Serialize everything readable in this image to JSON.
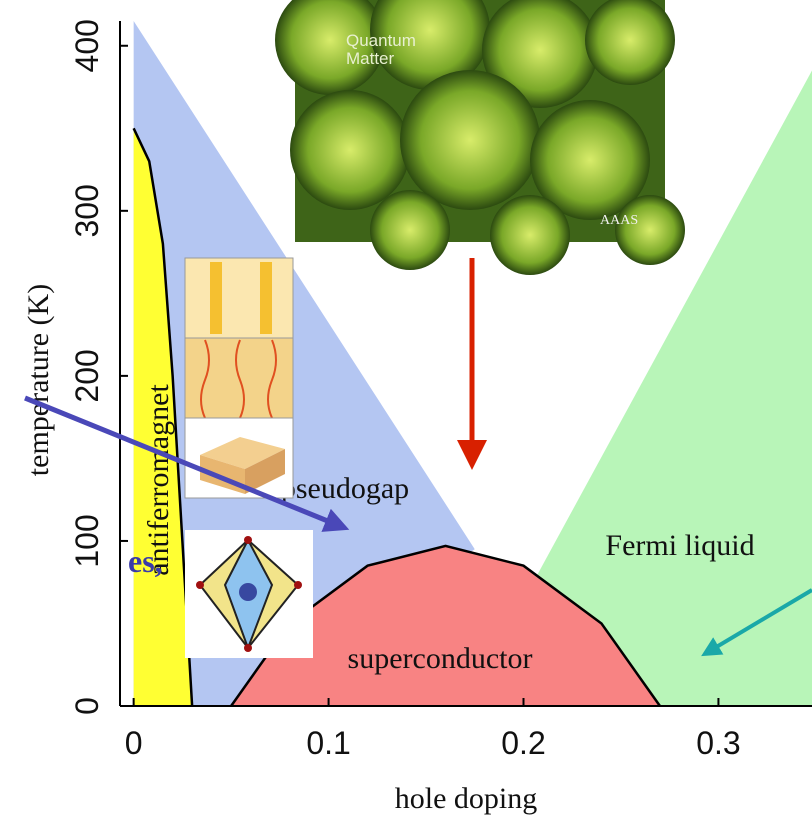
{
  "chart_data": {
    "type": "phase-diagram",
    "xlabel": "hole doping",
    "ylabel": "temperature (K)",
    "xlim": [
      -0.007,
      0.348
    ],
    "ylim": [
      0,
      415
    ],
    "xticks": [
      0,
      0.1,
      0.2,
      0.3
    ],
    "yticks": [
      0,
      100,
      200,
      300,
      400
    ],
    "regions": [
      {
        "name": "pseudogap",
        "color": "#b4c6f2",
        "x": [
          0,
          0.175,
          0.05,
          0
        ],
        "y": [
          415,
          95,
          0,
          0
        ]
      },
      {
        "name": "Fermi liquid",
        "color": "#b8f5b8",
        "x": [
          0.205,
          0.348,
          0.348,
          0.27
        ],
        "y": [
          75,
          385,
          0,
          0
        ]
      },
      {
        "name": "superconductor",
        "color": "#f88383",
        "x": [
          0.05,
          0.08,
          0.12,
          0.16,
          0.2,
          0.24,
          0.27
        ],
        "y": [
          0,
          50,
          85,
          97,
          85,
          50,
          0
        ]
      },
      {
        "name": "antiferromagnet",
        "color": "#ffff33",
        "x": [
          0,
          0.008,
          0.015,
          0.02,
          0.025,
          0.03,
          0
        ],
        "y": [
          350,
          330,
          280,
          200,
          100,
          0,
          0
        ]
      }
    ]
  },
  "cover_title": [
    "Quantum",
    "Matter"
  ],
  "cover_brand": "AAAS",
  "side_text": "es,"
}
